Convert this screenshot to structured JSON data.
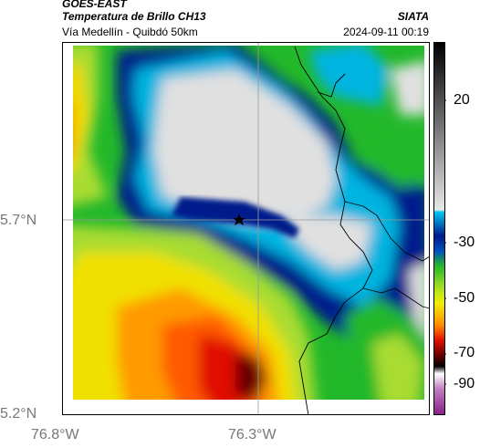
{
  "header": {
    "satellite": "GOES-EAST",
    "product": "Temperatura de Brillo CH13",
    "region": "Vía Medellín - Quibdó 50km",
    "org": "SIATA",
    "datetime": "2024-09-11 00:19"
  },
  "map": {
    "lat_labels": [
      "5.7°N",
      "5.2°N"
    ],
    "lon_labels": [
      "76.8°W",
      "76.3°W"
    ],
    "marker": "star-marker"
  },
  "colorbar": {
    "ticks": [
      "20",
      "-30",
      "-50",
      "-70",
      "-90"
    ],
    "colors": {
      "warm": "#e0e0e0",
      "cyan": "#00b4e0",
      "navy": "#001a8c",
      "green": "#22b82a",
      "yellow": "#f0f000",
      "orange": "#ff8a00",
      "red": "#e01000",
      "darkred": "#6a0000",
      "magenta": "#b040b0"
    }
  }
}
